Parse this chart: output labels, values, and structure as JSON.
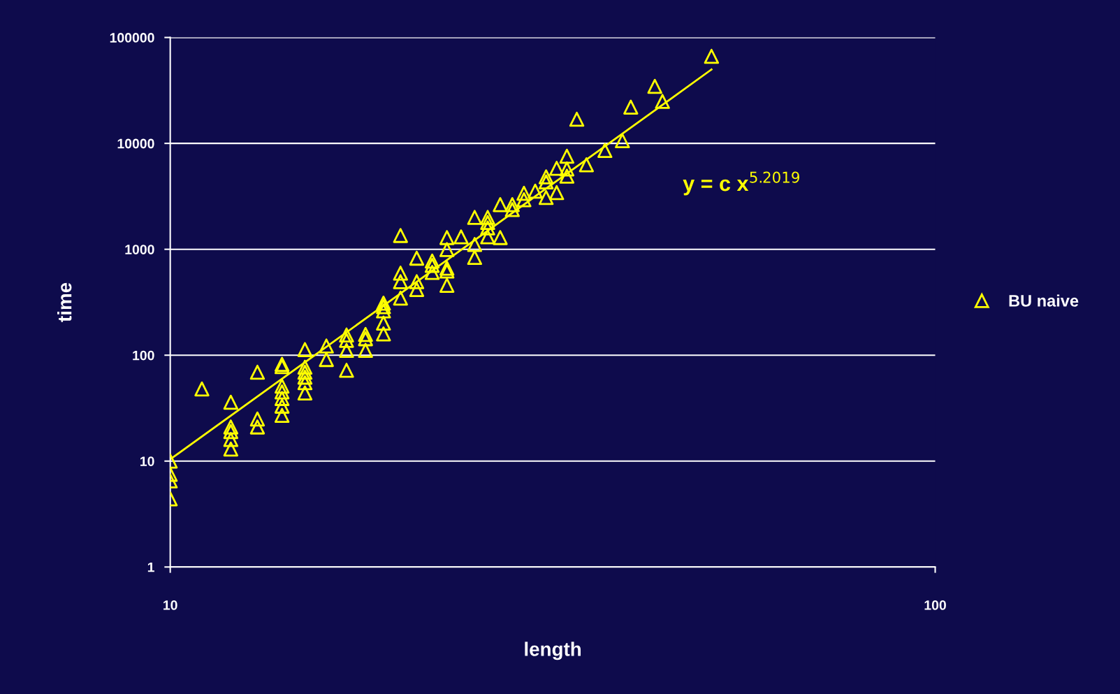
{
  "chart_data": {
    "type": "scatter",
    "xlabel": "length",
    "ylabel": "time",
    "log": "xy",
    "grid": "y",
    "legend": "right",
    "xlim": [
      10,
      100
    ],
    "xticks": [
      10,
      100
    ],
    "ylim": [
      1,
      100000
    ],
    "yticks": [
      1,
      10,
      100,
      1000,
      10000,
      100000
    ],
    "annotations": [
      "y = c x$^{5.2019}$"
    ],
    "series": [
      {
        "name": "BU naive",
        "marker": "triangle",
        "color": "#ffff00",
        "x": [
          10,
          10,
          10,
          10,
          11,
          12,
          12,
          12,
          12,
          12,
          13,
          13,
          13,
          14,
          14,
          14,
          14,
          14,
          14,
          14,
          15,
          15,
          15,
          15,
          15,
          15,
          16,
          16,
          17,
          17,
          17,
          17,
          18,
          18,
          18,
          19,
          19,
          19,
          19,
          19,
          20,
          20,
          20,
          20,
          21,
          21,
          21,
          22,
          22,
          22,
          23,
          23,
          23,
          23,
          23,
          24,
          25,
          25,
          25,
          26,
          26,
          26,
          26,
          27,
          27,
          28,
          28,
          29,
          29,
          30,
          31,
          31,
          31,
          32,
          32,
          33,
          33,
          33,
          34,
          35,
          37,
          39,
          40,
          43,
          44,
          51
        ],
        "values": [
          10,
          7.5,
          6.5,
          4.4,
          48,
          36,
          21,
          19,
          16,
          13,
          69,
          25,
          21,
          82,
          78,
          51,
          45,
          39,
          33,
          27,
          113,
          77,
          69,
          62,
          55,
          44,
          122,
          91,
          155,
          138,
          111,
          72,
          157,
          143,
          111,
          310,
          287,
          262,
          201,
          159,
          1350,
          595,
          494,
          346,
          824,
          494,
          417,
          774,
          705,
          604,
          1290,
          993,
          663,
          623,
          457,
          1310,
          2000,
          1110,
          837,
          2000,
          1790,
          1590,
          1310,
          2640,
          1290,
          2640,
          2370,
          3380,
          2940,
          3540,
          4830,
          4330,
          3080,
          5810,
          3430,
          7570,
          5730,
          4900,
          16900,
          6280,
          8570,
          10600,
          22000,
          34600,
          24900,
          66400
        ]
      },
      {
        "type": "line",
        "marker": "none",
        "line_style": "solid",
        "color": "#ffff00",
        "x": [
          10,
          15,
          20,
          25,
          30,
          35,
          40,
          45,
          51
        ],
        "values": [
          10.4,
          85.7,
          383,
          1220,
          3160,
          7030,
          14100,
          26000,
          49900
        ]
      }
    ]
  }
}
